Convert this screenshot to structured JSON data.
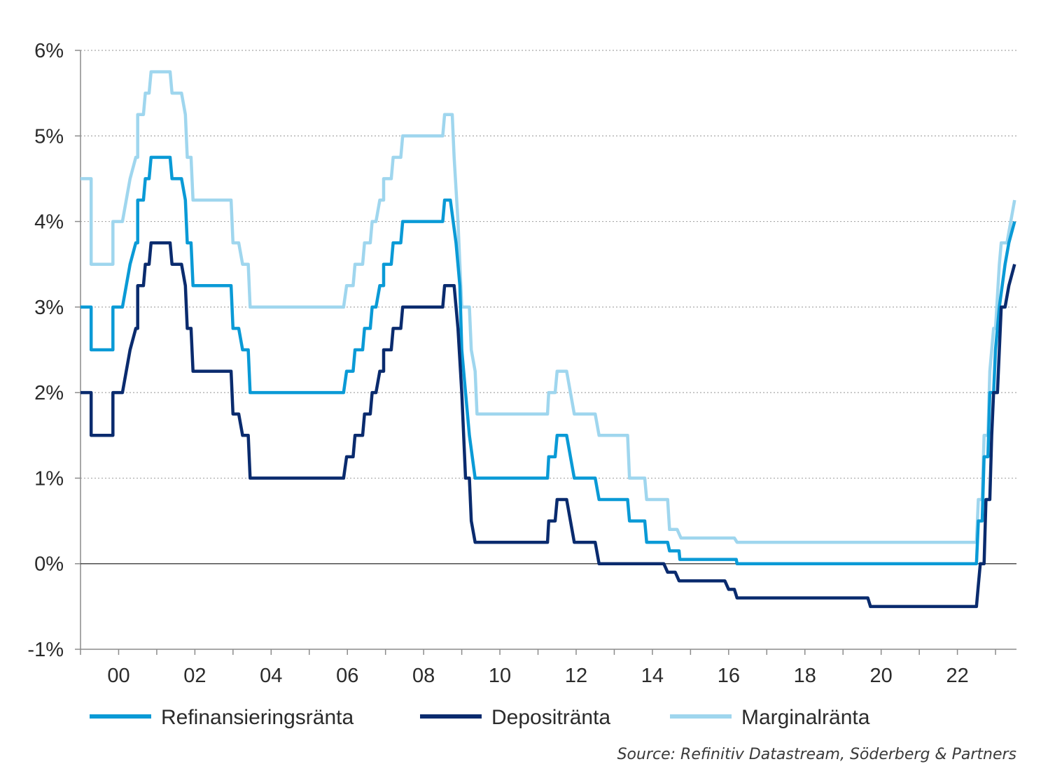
{
  "chart_data": {
    "type": "line",
    "title": "",
    "xlabel": "",
    "ylabel": "",
    "x_unit": "year",
    "xlim": [
      1999.0,
      2023.55
    ],
    "ylim": [
      -1,
      6
    ],
    "y_ticks": [
      -1,
      0,
      1,
      2,
      3,
      4,
      5,
      6
    ],
    "y_tick_labels": [
      "-1%",
      "0%",
      "1%",
      "2%",
      "3%",
      "4%",
      "5%",
      "6%"
    ],
    "x_ticks": [
      2000,
      2002,
      2004,
      2006,
      2008,
      2010,
      2012,
      2014,
      2016,
      2018,
      2020,
      2022
    ],
    "x_tick_labels": [
      "00",
      "02",
      "04",
      "06",
      "08",
      "10",
      "12",
      "14",
      "16",
      "18",
      "20",
      "22"
    ],
    "grid": "horizontal dotted",
    "legend_position": "bottom",
    "source": "Source: Refinitiv Datastream, Söderberg & Partners",
    "series": [
      {
        "name": "Refinansieringsränta",
        "color": "#0a9ad6",
        "points": [
          [
            1999.0,
            3.0
          ],
          [
            1999.28,
            3.0
          ],
          [
            1999.28,
            2.5
          ],
          [
            1999.85,
            2.5
          ],
          [
            1999.85,
            3.0
          ],
          [
            2000.1,
            3.0
          ],
          [
            2000.3,
            3.5
          ],
          [
            2000.45,
            3.75
          ],
          [
            2000.5,
            3.75
          ],
          [
            2000.5,
            4.25
          ],
          [
            2000.65,
            4.25
          ],
          [
            2000.7,
            4.5
          ],
          [
            2000.8,
            4.5
          ],
          [
            2000.85,
            4.75
          ],
          [
            2001.35,
            4.75
          ],
          [
            2001.4,
            4.5
          ],
          [
            2001.65,
            4.5
          ],
          [
            2001.75,
            4.25
          ],
          [
            2001.8,
            3.75
          ],
          [
            2001.9,
            3.75
          ],
          [
            2001.95,
            3.25
          ],
          [
            2002.95,
            3.25
          ],
          [
            2003.0,
            2.75
          ],
          [
            2003.15,
            2.75
          ],
          [
            2003.25,
            2.5
          ],
          [
            2003.4,
            2.5
          ],
          [
            2003.45,
            2.0
          ],
          [
            2005.9,
            2.0
          ],
          [
            2005.98,
            2.25
          ],
          [
            2006.15,
            2.25
          ],
          [
            2006.2,
            2.5
          ],
          [
            2006.4,
            2.5
          ],
          [
            2006.45,
            2.75
          ],
          [
            2006.6,
            2.75
          ],
          [
            2006.65,
            3.0
          ],
          [
            2006.75,
            3.0
          ],
          [
            2006.85,
            3.25
          ],
          [
            2006.95,
            3.25
          ],
          [
            2006.95,
            3.5
          ],
          [
            2007.15,
            3.5
          ],
          [
            2007.2,
            3.75
          ],
          [
            2007.4,
            3.75
          ],
          [
            2007.45,
            4.0
          ],
          [
            2008.5,
            4.0
          ],
          [
            2008.55,
            4.25
          ],
          [
            2008.7,
            4.25
          ],
          [
            2008.85,
            3.75
          ],
          [
            2008.95,
            3.25
          ],
          [
            2009.0,
            2.5
          ],
          [
            2009.1,
            2.0
          ],
          [
            2009.2,
            1.5
          ],
          [
            2009.35,
            1.0
          ],
          [
            2011.25,
            1.0
          ],
          [
            2011.28,
            1.25
          ],
          [
            2011.45,
            1.25
          ],
          [
            2011.5,
            1.5
          ],
          [
            2011.75,
            1.5
          ],
          [
            2011.95,
            1.0
          ],
          [
            2012.5,
            1.0
          ],
          [
            2012.6,
            0.75
          ],
          [
            2013.35,
            0.75
          ],
          [
            2013.4,
            0.5
          ],
          [
            2013.8,
            0.5
          ],
          [
            2013.85,
            0.25
          ],
          [
            2014.4,
            0.25
          ],
          [
            2014.45,
            0.15
          ],
          [
            2014.7,
            0.15
          ],
          [
            2014.72,
            0.05
          ],
          [
            2016.2,
            0.05
          ],
          [
            2016.22,
            0.0
          ],
          [
            2022.5,
            0.0
          ],
          [
            2022.55,
            0.5
          ],
          [
            2022.65,
            0.5
          ],
          [
            2022.7,
            1.25
          ],
          [
            2022.8,
            1.25
          ],
          [
            2022.85,
            2.0
          ],
          [
            2022.95,
            2.0
          ],
          [
            2023.0,
            2.5
          ],
          [
            2023.1,
            3.0
          ],
          [
            2023.25,
            3.5
          ],
          [
            2023.35,
            3.75
          ],
          [
            2023.5,
            4.0
          ]
        ]
      },
      {
        "name": "Depositränta",
        "color": "#0a2b6e",
        "points": [
          [
            1999.0,
            2.0
          ],
          [
            1999.28,
            2.0
          ],
          [
            1999.28,
            1.5
          ],
          [
            1999.85,
            1.5
          ],
          [
            1999.85,
            2.0
          ],
          [
            2000.1,
            2.0
          ],
          [
            2000.3,
            2.5
          ],
          [
            2000.45,
            2.75
          ],
          [
            2000.5,
            2.75
          ],
          [
            2000.5,
            3.25
          ],
          [
            2000.65,
            3.25
          ],
          [
            2000.7,
            3.5
          ],
          [
            2000.8,
            3.5
          ],
          [
            2000.85,
            3.75
          ],
          [
            2001.35,
            3.75
          ],
          [
            2001.4,
            3.5
          ],
          [
            2001.65,
            3.5
          ],
          [
            2001.75,
            3.25
          ],
          [
            2001.8,
            2.75
          ],
          [
            2001.9,
            2.75
          ],
          [
            2001.95,
            2.25
          ],
          [
            2002.95,
            2.25
          ],
          [
            2003.0,
            1.75
          ],
          [
            2003.15,
            1.75
          ],
          [
            2003.25,
            1.5
          ],
          [
            2003.4,
            1.5
          ],
          [
            2003.45,
            1.0
          ],
          [
            2005.9,
            1.0
          ],
          [
            2005.98,
            1.25
          ],
          [
            2006.15,
            1.25
          ],
          [
            2006.2,
            1.5
          ],
          [
            2006.4,
            1.5
          ],
          [
            2006.45,
            1.75
          ],
          [
            2006.6,
            1.75
          ],
          [
            2006.65,
            2.0
          ],
          [
            2006.75,
            2.0
          ],
          [
            2006.85,
            2.25
          ],
          [
            2006.95,
            2.25
          ],
          [
            2006.95,
            2.5
          ],
          [
            2007.15,
            2.5
          ],
          [
            2007.2,
            2.75
          ],
          [
            2007.4,
            2.75
          ],
          [
            2007.45,
            3.0
          ],
          [
            2008.5,
            3.0
          ],
          [
            2008.55,
            3.25
          ],
          [
            2008.8,
            3.25
          ],
          [
            2008.9,
            2.75
          ],
          [
            2009.0,
            2.0
          ],
          [
            2009.1,
            1.0
          ],
          [
            2009.2,
            1.0
          ],
          [
            2009.25,
            0.5
          ],
          [
            2009.35,
            0.25
          ],
          [
            2011.25,
            0.25
          ],
          [
            2011.28,
            0.5
          ],
          [
            2011.45,
            0.5
          ],
          [
            2011.5,
            0.75
          ],
          [
            2011.75,
            0.75
          ],
          [
            2011.95,
            0.25
          ],
          [
            2012.5,
            0.25
          ],
          [
            2012.6,
            0.0
          ],
          [
            2014.3,
            0.0
          ],
          [
            2014.4,
            -0.1
          ],
          [
            2014.6,
            -0.1
          ],
          [
            2014.7,
            -0.2
          ],
          [
            2015.9,
            -0.2
          ],
          [
            2016.0,
            -0.3
          ],
          [
            2016.15,
            -0.3
          ],
          [
            2016.22,
            -0.4
          ],
          [
            2019.65,
            -0.4
          ],
          [
            2019.72,
            -0.5
          ],
          [
            2022.5,
            -0.5
          ],
          [
            2022.55,
            -0.25
          ],
          [
            2022.6,
            0.0
          ],
          [
            2022.7,
            0.0
          ],
          [
            2022.75,
            0.75
          ],
          [
            2022.85,
            0.75
          ],
          [
            2022.9,
            1.5
          ],
          [
            2022.95,
            2.0
          ],
          [
            2023.05,
            2.0
          ],
          [
            2023.15,
            3.0
          ],
          [
            2023.25,
            3.0
          ],
          [
            2023.35,
            3.25
          ],
          [
            2023.5,
            3.5
          ]
        ]
      },
      {
        "name": "Marginalränta",
        "color": "#9fd6ee",
        "points": [
          [
            1999.0,
            4.5
          ],
          [
            1999.28,
            4.5
          ],
          [
            1999.28,
            3.5
          ],
          [
            1999.85,
            3.5
          ],
          [
            1999.85,
            4.0
          ],
          [
            2000.1,
            4.0
          ],
          [
            2000.3,
            4.5
          ],
          [
            2000.45,
            4.75
          ],
          [
            2000.5,
            4.75
          ],
          [
            2000.5,
            5.25
          ],
          [
            2000.65,
            5.25
          ],
          [
            2000.7,
            5.5
          ],
          [
            2000.8,
            5.5
          ],
          [
            2000.85,
            5.75
          ],
          [
            2001.35,
            5.75
          ],
          [
            2001.4,
            5.5
          ],
          [
            2001.65,
            5.5
          ],
          [
            2001.75,
            5.25
          ],
          [
            2001.8,
            4.75
          ],
          [
            2001.9,
            4.75
          ],
          [
            2001.95,
            4.25
          ],
          [
            2002.95,
            4.25
          ],
          [
            2003.0,
            3.75
          ],
          [
            2003.15,
            3.75
          ],
          [
            2003.25,
            3.5
          ],
          [
            2003.4,
            3.5
          ],
          [
            2003.45,
            3.0
          ],
          [
            2005.9,
            3.0
          ],
          [
            2005.98,
            3.25
          ],
          [
            2006.15,
            3.25
          ],
          [
            2006.2,
            3.5
          ],
          [
            2006.4,
            3.5
          ],
          [
            2006.45,
            3.75
          ],
          [
            2006.6,
            3.75
          ],
          [
            2006.65,
            4.0
          ],
          [
            2006.75,
            4.0
          ],
          [
            2006.85,
            4.25
          ],
          [
            2006.95,
            4.25
          ],
          [
            2006.95,
            4.5
          ],
          [
            2007.15,
            4.5
          ],
          [
            2007.2,
            4.75
          ],
          [
            2007.4,
            4.75
          ],
          [
            2007.45,
            5.0
          ],
          [
            2008.5,
            5.0
          ],
          [
            2008.55,
            5.25
          ],
          [
            2008.75,
            5.25
          ],
          [
            2008.8,
            4.75
          ],
          [
            2008.9,
            4.0
          ],
          [
            2008.95,
            3.5
          ],
          [
            2009.0,
            3.0
          ],
          [
            2009.2,
            3.0
          ],
          [
            2009.25,
            2.5
          ],
          [
            2009.35,
            2.25
          ],
          [
            2009.4,
            1.75
          ],
          [
            2011.25,
            1.75
          ],
          [
            2011.28,
            2.0
          ],
          [
            2011.45,
            2.0
          ],
          [
            2011.5,
            2.25
          ],
          [
            2011.75,
            2.25
          ],
          [
            2011.95,
            1.75
          ],
          [
            2012.5,
            1.75
          ],
          [
            2012.6,
            1.5
          ],
          [
            2013.35,
            1.5
          ],
          [
            2013.4,
            1.0
          ],
          [
            2013.8,
            1.0
          ],
          [
            2013.85,
            0.75
          ],
          [
            2014.4,
            0.75
          ],
          [
            2014.45,
            0.4
          ],
          [
            2014.65,
            0.4
          ],
          [
            2014.75,
            0.3
          ],
          [
            2016.15,
            0.3
          ],
          [
            2016.22,
            0.25
          ],
          [
            2022.5,
            0.25
          ],
          [
            2022.55,
            0.75
          ],
          [
            2022.65,
            0.75
          ],
          [
            2022.7,
            1.5
          ],
          [
            2022.8,
            1.5
          ],
          [
            2022.85,
            2.25
          ],
          [
            2022.95,
            2.75
          ],
          [
            2023.0,
            2.75
          ],
          [
            2023.1,
            3.5
          ],
          [
            2023.15,
            3.75
          ],
          [
            2023.3,
            3.75
          ],
          [
            2023.4,
            4.0
          ],
          [
            2023.5,
            4.25
          ]
        ]
      }
    ]
  }
}
